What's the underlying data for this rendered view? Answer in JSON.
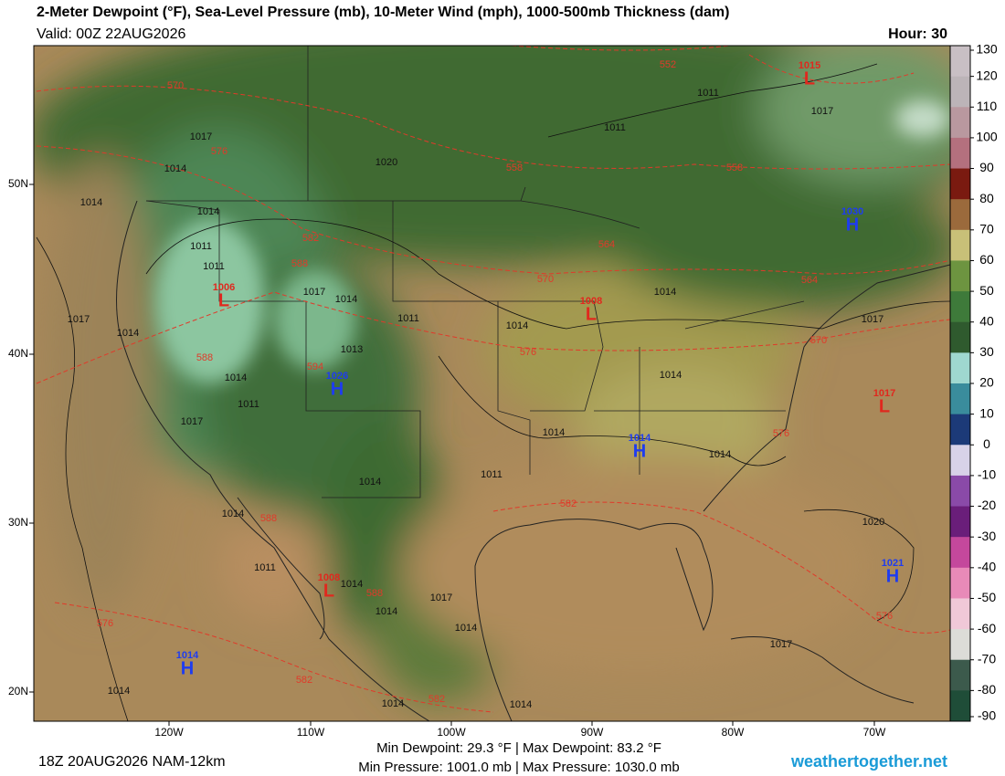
{
  "header": {
    "title": "2-Meter Dewpoint (°F), Sea-Level Pressure (mb), 10-Meter Wind (mph), 1000-500mb Thickness (dam)",
    "valid": "Valid: 00Z 22AUG2026",
    "hour": "Hour: 30"
  },
  "colorbar": {
    "ticks": [
      130,
      120,
      110,
      100,
      90,
      80,
      70,
      60,
      50,
      40,
      30,
      20,
      10,
      0,
      -10,
      -20,
      -30,
      -40,
      -50,
      -60,
      -70,
      -80,
      -90
    ]
  },
  "lat_labels": [
    "50N",
    "40N",
    "30N",
    "20N"
  ],
  "lon_labels": [
    "120W",
    "110W",
    "100W",
    "90W",
    "80W",
    "70W"
  ],
  "centers": [
    {
      "kind": "L",
      "value": "1015"
    },
    {
      "kind": "H",
      "value": "1030"
    },
    {
      "kind": "L",
      "value": "1006"
    },
    {
      "kind": "L",
      "value": "1008"
    },
    {
      "kind": "H",
      "value": "1026"
    },
    {
      "kind": "H",
      "value": "1014"
    },
    {
      "kind": "L",
      "value": "1017"
    },
    {
      "kind": "H",
      "value": "1021"
    },
    {
      "kind": "L",
      "value": "1008"
    },
    {
      "kind": "H",
      "value": "1014"
    }
  ],
  "isobar_labels": [
    "1011",
    "1017",
    "1011",
    "1020",
    "1017",
    "1014",
    "1014",
    "1014",
    "1011",
    "1011",
    "1017",
    "1014",
    "1017",
    "1014",
    "1011",
    "1014",
    "1014",
    "1017",
    "1013",
    "1014",
    "1011",
    "1014",
    "1017",
    "1014",
    "1014",
    "1011",
    "1014",
    "1014",
    "1011",
    "1020",
    "1014",
    "1017",
    "1014",
    "1014",
    "1017",
    "1014",
    "1014",
    "1014"
  ],
  "thickness_labels": [
    "552",
    "570",
    "576",
    "558",
    "558",
    "582",
    "588",
    "564",
    "570",
    "564",
    "576",
    "570",
    "588",
    "594",
    "582",
    "588",
    "588",
    "576",
    "576",
    "582",
    "582",
    "576"
  ],
  "footer": {
    "run": "18Z 20AUG2026 NAM-12km",
    "stats_dewpoint": "Min Dewpoint:  29.3 °F | Max Dewpoint:  83.2 °F",
    "stats_pressure": "Min Pressure: 1001.0 mb | Max Pressure: 1030.0 mb",
    "site": "weathertogether.net"
  }
}
